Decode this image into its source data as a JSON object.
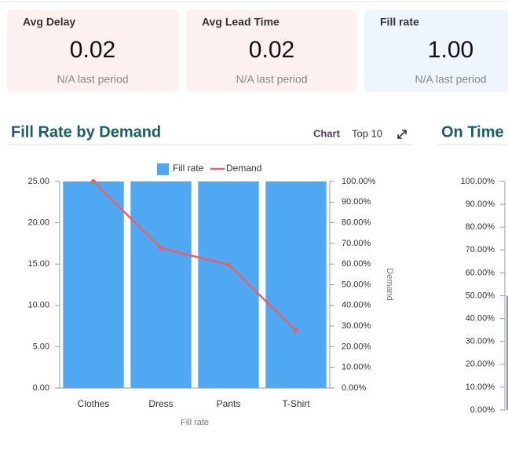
{
  "kpis": [
    {
      "label": "Avg Delay",
      "value": "0.02",
      "note": "N/A last period"
    },
    {
      "label": "Avg Lead Time",
      "value": "0.02",
      "note": "N/A last period"
    },
    {
      "label": "Fill rate",
      "value": "1.00",
      "note": "N/A last period"
    }
  ],
  "controls": {
    "view": "Chart",
    "top": "Top 10"
  },
  "chart_data": [
    {
      "type": "bar",
      "title": "Fill Rate by Demand",
      "categories": [
        "Clothes",
        "Dress",
        "Pants",
        "T-Shirt"
      ],
      "series": [
        {
          "name": "Fill rate",
          "color": "#4ea8f2",
          "values": [
            25,
            25,
            25,
            25
          ]
        },
        {
          "name": "Demand",
          "type": "line",
          "axis": "y2",
          "color": "#e8606a",
          "values": [
            100,
            67.7,
            59.7,
            27.8
          ]
        }
      ],
      "xlabel": "Fill rate",
      "y2label": "Demand",
      "ylim": [
        0,
        25
      ],
      "yticks": [
        {
          "value": 0,
          "label": "0.00"
        },
        {
          "value": 5,
          "label": "5.00"
        },
        {
          "value": 10,
          "label": "10.00"
        },
        {
          "value": 15,
          "label": "15.00"
        },
        {
          "value": 20,
          "label": "20.00"
        },
        {
          "value": 25,
          "label": "25.00"
        }
      ],
      "y2lim": [
        0,
        100
      ],
      "y2ticks": [
        {
          "value": 0,
          "label": "0.00%"
        },
        {
          "value": 10,
          "label": "10.00%"
        },
        {
          "value": 20,
          "label": "20.00%"
        },
        {
          "value": 30,
          "label": "30.00%"
        },
        {
          "value": 40,
          "label": "40.00%"
        },
        {
          "value": 50,
          "label": "50.00%"
        },
        {
          "value": 60,
          "label": "60.00%"
        },
        {
          "value": 70,
          "label": "70.00%"
        },
        {
          "value": 80,
          "label": "80.00%"
        },
        {
          "value": 90,
          "label": "90.00%"
        },
        {
          "value": 100,
          "label": "100.00%"
        }
      ],
      "legend": "top"
    },
    {
      "type": "bar",
      "title": "On Time",
      "categories": [
        null
      ],
      "series": [
        {
          "color": "#4ea8f2",
          "values": [
            50
          ]
        }
      ],
      "ylim": [
        0,
        100
      ],
      "yticks": [
        {
          "value": 0,
          "label": "0.00%"
        },
        {
          "value": 10,
          "label": "10.00%"
        },
        {
          "value": 20,
          "label": "20.00%"
        },
        {
          "value": 30,
          "label": "30.00%"
        },
        {
          "value": 40,
          "label": "40.00%"
        },
        {
          "value": 50,
          "label": "50.00%"
        },
        {
          "value": 60,
          "label": "60.00%"
        },
        {
          "value": 70,
          "label": "70.00%"
        },
        {
          "value": 80,
          "label": "80.00%"
        },
        {
          "value": 90,
          "label": "90.00%"
        },
        {
          "value": 100,
          "label": "100.00%"
        }
      ]
    }
  ]
}
